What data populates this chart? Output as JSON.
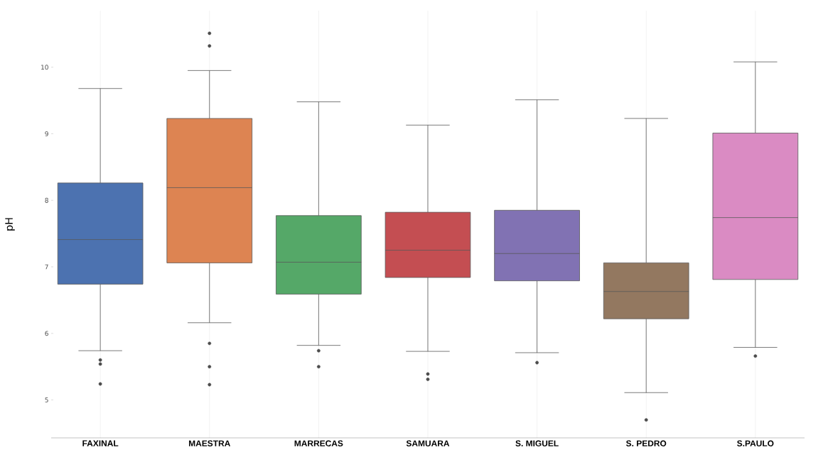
{
  "chart_data": {
    "type": "box",
    "ylabel": "pH",
    "categories": [
      "FAXINAL",
      "MAESTRA",
      "MARRECAS",
      "SAMUARA",
      "S. MIGUEL",
      "S. PEDRO",
      "S.PAULO"
    ],
    "colors": [
      "#4c72b0",
      "#dd8452",
      "#55a868",
      "#c44e52",
      "#8172b3",
      "#937860",
      "#da8bc3"
    ],
    "boxes": [
      {
        "low": 5.74,
        "q1": 6.74,
        "median": 7.41,
        "q3": 8.26,
        "high": 9.68,
        "outliers": [
          5.6,
          5.54,
          5.24
        ]
      },
      {
        "low": 6.16,
        "q1": 7.06,
        "median": 8.19,
        "q3": 9.23,
        "high": 9.95,
        "outliers": [
          10.32,
          10.51,
          5.85,
          5.5,
          5.23
        ]
      },
      {
        "low": 5.82,
        "q1": 6.59,
        "median": 7.07,
        "q3": 7.77,
        "high": 9.48,
        "outliers": [
          5.74,
          5.5
        ]
      },
      {
        "low": 5.73,
        "q1": 6.84,
        "median": 7.25,
        "q3": 7.82,
        "high": 9.13,
        "outliers": [
          5.39,
          5.31
        ]
      },
      {
        "low": 5.71,
        "q1": 6.79,
        "median": 7.2,
        "q3": 7.85,
        "high": 9.51,
        "outliers": [
          5.56
        ]
      },
      {
        "low": 5.11,
        "q1": 6.22,
        "median": 6.63,
        "q3": 7.06,
        "high": 9.23,
        "outliers": [
          4.7
        ]
      },
      {
        "low": 5.79,
        "q1": 6.81,
        "median": 7.74,
        "q3": 9.01,
        "high": 10.08,
        "outliers": [
          5.66
        ]
      }
    ],
    "ylim": [
      4.43,
      10.85
    ],
    "yticks": [
      5,
      6,
      7,
      8,
      9,
      10
    ],
    "grid": "x",
    "marker": "circle"
  }
}
